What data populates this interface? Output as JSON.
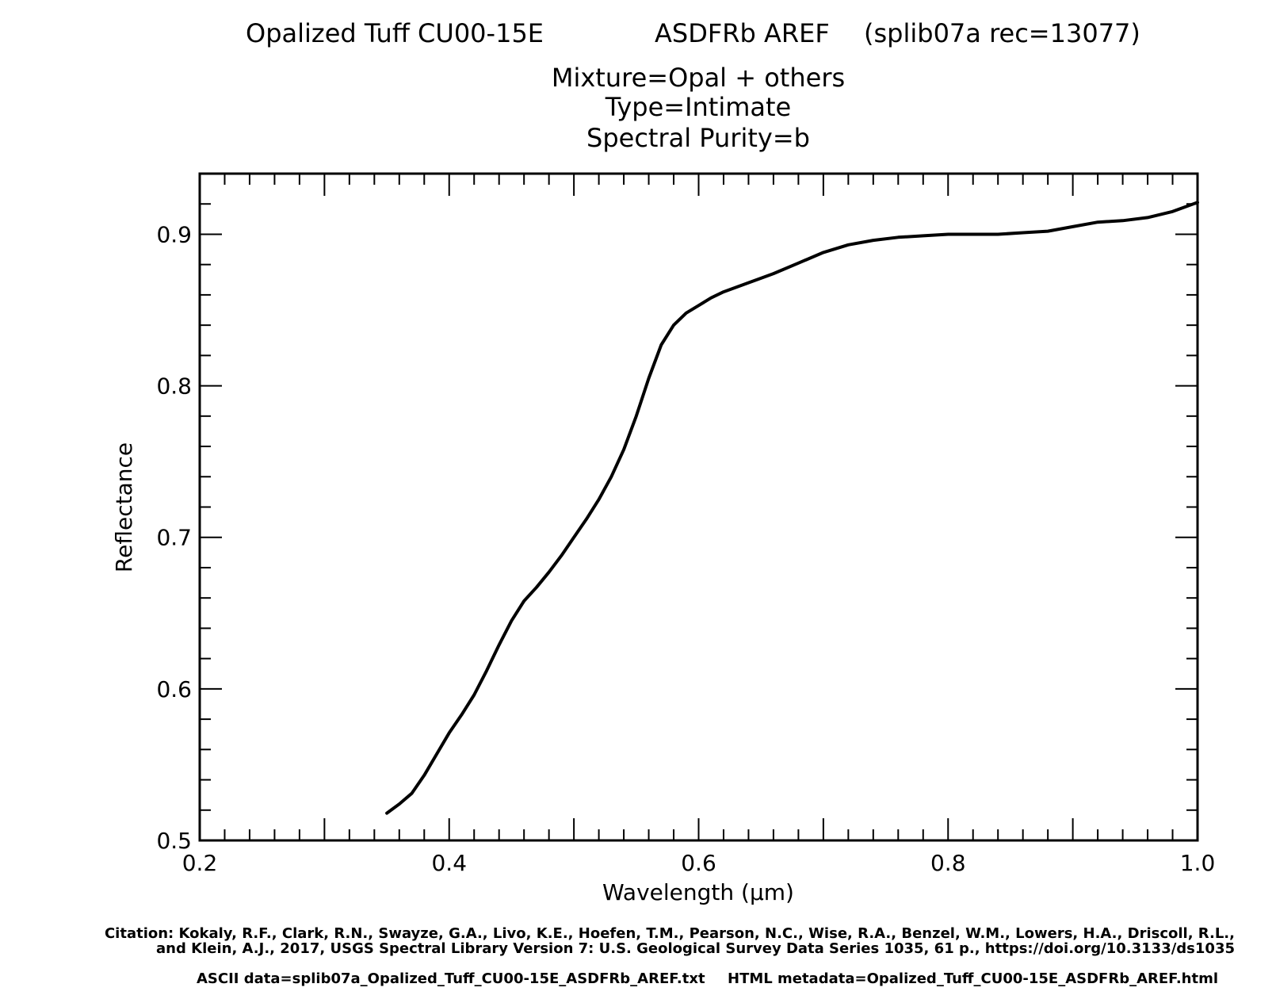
{
  "header": {
    "sample": "Opalized Tuff CU00-15E",
    "instrument": "ASDFRb AREF",
    "record": "(splib07a rec=13077)",
    "mixture": "Mixture=Opal + others",
    "type": "Type=Intimate",
    "purity": "Spectral Purity=b"
  },
  "footer": {
    "citation_line1": "Citation: Kokaly, R.F., Clark, R.N., Swayze, G.A., Livo, K.E., Hoefen, T.M., Pearson, N.C., Wise, R.A., Benzel, W.M., Lowers, H.A., Driscoll, R.L.,",
    "citation_line2": "and Klein, A.J., 2017, USGS Spectral Library Version 7: U.S. Geological Survey Data Series 1035, 61 p., https://doi.org/10.3133/ds1035",
    "ascii_data": "ASCII data=splib07a_Opalized_Tuff_CU00-15E_ASDFRb_AREF.txt",
    "html_metadata": "HTML metadata=Opalized_Tuff_CU00-15E_ASDFRb_AREF.html"
  },
  "chart_data": {
    "type": "line",
    "xlabel": "Wavelength (μm)",
    "ylabel": "Reflectance",
    "xlim": [
      0.2,
      1.0
    ],
    "ylim": [
      0.5,
      0.94
    ],
    "x_ticks": [
      0.2,
      0.4,
      0.6,
      0.8,
      1.0
    ],
    "x_tick_labels": [
      "0.2",
      "0.4",
      "0.6",
      "0.8",
      "1.0"
    ],
    "y_ticks": [
      0.5,
      0.6,
      0.7,
      0.8,
      0.9
    ],
    "y_tick_labels": [
      "0.5",
      "0.6",
      "0.7",
      "0.8",
      "0.9"
    ],
    "grid": false,
    "line_color": "#000000",
    "series": [
      {
        "x": [
          0.35,
          0.36,
          0.37,
          0.38,
          0.39,
          0.4,
          0.41,
          0.42,
          0.43,
          0.44,
          0.45,
          0.46,
          0.47,
          0.48,
          0.49,
          0.5,
          0.51,
          0.52,
          0.53,
          0.54,
          0.55,
          0.56,
          0.57,
          0.58,
          0.59,
          0.6,
          0.61,
          0.62,
          0.63,
          0.64,
          0.65,
          0.66,
          0.68,
          0.7,
          0.72,
          0.74,
          0.76,
          0.78,
          0.8,
          0.82,
          0.84,
          0.86,
          0.88,
          0.9,
          0.92,
          0.94,
          0.96,
          0.98,
          1.0
        ],
        "y": [
          0.518,
          0.524,
          0.531,
          0.543,
          0.557,
          0.571,
          0.583,
          0.596,
          0.612,
          0.629,
          0.645,
          0.658,
          0.667,
          0.677,
          0.688,
          0.7,
          0.712,
          0.725,
          0.74,
          0.758,
          0.78,
          0.805,
          0.827,
          0.84,
          0.848,
          0.853,
          0.858,
          0.862,
          0.865,
          0.868,
          0.871,
          0.874,
          0.881,
          0.888,
          0.893,
          0.896,
          0.898,
          0.899,
          0.9,
          0.9,
          0.9,
          0.901,
          0.902,
          0.905,
          0.908,
          0.909,
          0.911,
          0.915,
          0.921
        ]
      }
    ]
  }
}
